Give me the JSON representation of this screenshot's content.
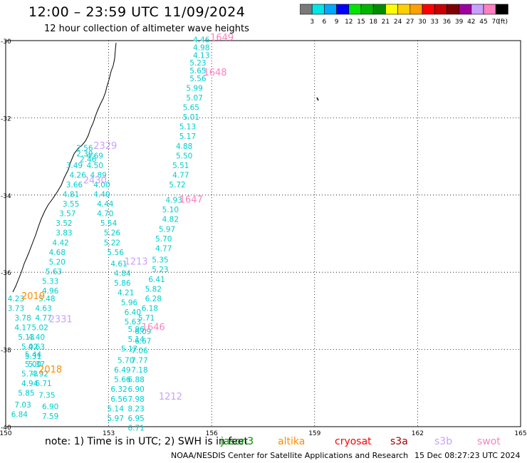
{
  "title": "12:00 – 23:59 UTC 11/09/2024",
  "subtitle": "12 hour collection of altimeter wave heights",
  "colorbar": {
    "unit": "(ft)",
    "colors": [
      "#7a7a7a",
      "#00e6e6",
      "#00a8ff",
      "#0000ff",
      "#00e600",
      "#00b400",
      "#008c00",
      "#ffff00",
      "#ffd000",
      "#ffa000",
      "#ff0000",
      "#c80000",
      "#800000",
      "#a000a0",
      "#c8a0ff",
      "#ff80c0",
      "#000000"
    ],
    "labels": [
      "3",
      "6",
      "9",
      "12",
      "15",
      "18",
      "21",
      "24",
      "27",
      "30",
      "33",
      "36",
      "39",
      "42",
      "45",
      "70"
    ]
  },
  "axes": {
    "lon_min": 150,
    "lon_max": 165,
    "lat_min": -40,
    "lat_max": -30,
    "lon_ticks": [
      "150",
      "153",
      "156",
      "159",
      "162",
      "165"
    ],
    "lat_ticks": [
      "-30",
      "-32",
      "-34",
      "-36",
      "-38",
      "-40"
    ]
  },
  "note": {
    "text": "note:  1) Time is in UTC;  2) SWH is in feet",
    "missions": [
      {
        "name": "jason3",
        "color": "#008800"
      },
      {
        "name": "altika",
        "color": "#ff8c00"
      },
      {
        "name": "cryosat",
        "color": "#ff0000"
      },
      {
        "name": "s3a",
        "color": "#a00000"
      },
      {
        "name": "s3b",
        "color": "#c8a0ff"
      },
      {
        "name": "swot",
        "color": "#ff80c0"
      }
    ]
  },
  "credit": "NOAA/NESDIS Center for Satellite Applications and Research",
  "credit_date": "15 Dec 08:27:23 UTC 2024",
  "chart_data": {
    "type": "scatter",
    "unit": "ft",
    "passes": [
      {
        "label": "1649",
        "color": "#ff80c0",
        "lon": 156.3,
        "lat": -30.0
      },
      {
        "label": "1648",
        "color": "#ff80c0",
        "lon": 156.1,
        "lat": -30.9
      },
      {
        "label": "1647",
        "color": "#ff80c0",
        "lon": 155.4,
        "lat": -34.2
      },
      {
        "label": "1646",
        "color": "#ff80c0",
        "lon": 154.3,
        "lat": -37.5
      },
      {
        "label": "2329",
        "color": "#c8a0ff",
        "lon": 152.9,
        "lat": -32.8
      },
      {
        "label": "2430",
        "color": "#c8a0ff",
        "lon": 152.6,
        "lat": -33.7
      },
      {
        "label": "2331",
        "color": "#c8a0ff",
        "lon": 151.6,
        "lat": -37.3
      },
      {
        "label": "1212",
        "color": "#c8a0ff",
        "lon": 154.8,
        "lat": -39.3
      },
      {
        "label": "1213",
        "color": "#c8a0ff",
        "lon": 153.8,
        "lat": -35.8
      },
      {
        "label": "2019",
        "color": "#ff8c00",
        "lon": 150.8,
        "lat": -36.7
      },
      {
        "label": "2018",
        "color": "#ff8c00",
        "lon": 151.3,
        "lat": -38.6
      }
    ],
    "tracks": [
      {
        "color": "#00cdcd",
        "points": [
          [
            155.7,
            -30.05,
            "4.46"
          ],
          [
            155.7,
            -30.25,
            "4.98"
          ],
          [
            155.7,
            -30.45,
            "4.13"
          ],
          [
            155.6,
            -30.65,
            "5.23"
          ],
          [
            155.6,
            -30.85,
            "5.65"
          ],
          [
            155.6,
            -31.05,
            "5.56"
          ],
          [
            155.5,
            -31.3,
            "5.99"
          ],
          [
            155.5,
            -31.55,
            "5.07"
          ],
          [
            155.4,
            -31.8,
            "5.65"
          ],
          [
            155.4,
            -32.05,
            "5.01"
          ],
          [
            155.3,
            -32.3,
            "5.13"
          ],
          [
            155.3,
            -32.55,
            "5.17"
          ],
          [
            155.2,
            -32.8,
            "4.88"
          ],
          [
            155.2,
            -33.05,
            "5.50"
          ],
          [
            155.1,
            -33.3,
            "5.51"
          ],
          [
            155.1,
            -33.55,
            "4.77"
          ],
          [
            155.0,
            -33.8,
            "5.72"
          ],
          [
            154.9,
            -34.2,
            "4.93"
          ],
          [
            154.8,
            -34.45,
            "5.10"
          ],
          [
            154.8,
            -34.7,
            "4.82"
          ],
          [
            154.7,
            -34.95,
            "5.97"
          ],
          [
            154.6,
            -35.2,
            "5.70"
          ],
          [
            154.6,
            -35.45,
            "4.77"
          ],
          [
            154.5,
            -35.75,
            "5.35"
          ],
          [
            154.5,
            -36.0,
            "5.23"
          ],
          [
            154.4,
            -36.25,
            "6.41"
          ],
          [
            154.3,
            -36.5,
            "5.82"
          ],
          [
            154.3,
            -36.75,
            "6.28"
          ],
          [
            154.2,
            -37.0,
            "6.18"
          ],
          [
            154.1,
            -37.25,
            "5.71"
          ],
          [
            154.0,
            -37.6,
            "6.09"
          ],
          [
            154.0,
            -37.85,
            "6.67"
          ],
          [
            153.9,
            -38.1,
            "7.06"
          ],
          [
            153.9,
            -38.35,
            "7.77"
          ],
          [
            153.9,
            -38.6,
            "7.18"
          ],
          [
            153.8,
            -38.85,
            "6.88"
          ],
          [
            153.8,
            -39.1,
            "6.90"
          ],
          [
            153.8,
            -39.35,
            "7.98"
          ],
          [
            153.8,
            -39.6,
            "8.23"
          ],
          [
            153.8,
            -39.85,
            "6.95"
          ],
          [
            153.8,
            -40.1,
            "6.71"
          ]
        ]
      },
      {
        "color": "#00cdcd",
        "points": [
          [
            152.3,
            -32.85,
            "2.56"
          ],
          [
            152.3,
            -33.0,
            "2.39"
          ],
          [
            152.4,
            -33.15,
            "2.46"
          ],
          [
            152.0,
            -33.3,
            "3.49"
          ],
          [
            152.1,
            -33.55,
            "4.26"
          ],
          [
            152.0,
            -33.8,
            "3.66"
          ],
          [
            151.9,
            -34.05,
            "4.81"
          ],
          [
            151.9,
            -34.3,
            "3.55"
          ],
          [
            151.8,
            -34.55,
            "3.57"
          ],
          [
            151.7,
            -34.8,
            "3.52"
          ],
          [
            151.7,
            -35.05,
            "3.83"
          ],
          [
            151.6,
            -35.3,
            "4.42"
          ],
          [
            151.5,
            -35.55,
            "4.68"
          ],
          [
            151.5,
            -35.8,
            "5.20"
          ],
          [
            151.4,
            -36.05,
            "5.63"
          ],
          [
            151.3,
            -36.3,
            "5.33"
          ],
          [
            151.3,
            -36.55,
            "4.96"
          ],
          [
            151.2,
            -36.75,
            "5.48"
          ],
          [
            151.1,
            -37.0,
            "4.63"
          ],
          [
            151.1,
            -37.25,
            "4.77"
          ],
          [
            151.0,
            -37.5,
            "5.02"
          ],
          [
            150.9,
            -37.75,
            "4.40"
          ],
          [
            150.9,
            -38.0,
            "4.63"
          ],
          [
            150.8,
            -38.2,
            "5.44"
          ],
          [
            150.8,
            -38.45,
            "5.00"
          ],
          [
            150.7,
            -38.7,
            "5.73"
          ],
          [
            150.7,
            -38.95,
            "4.94"
          ],
          [
            150.6,
            -39.2,
            "5.85"
          ],
          [
            150.5,
            -39.5,
            "7.03"
          ],
          [
            150.4,
            -39.75,
            "6.84"
          ]
        ]
      },
      {
        "color": "#00cdcd",
        "points": [
          [
            152.6,
            -33.05,
            "4.69"
          ],
          [
            152.6,
            -33.3,
            "4.50"
          ],
          [
            152.7,
            -33.55,
            "4.89"
          ],
          [
            152.8,
            -33.8,
            "4.00"
          ],
          [
            152.8,
            -34.05,
            "4.40"
          ],
          [
            152.9,
            -34.3,
            "4.44"
          ],
          [
            152.9,
            -34.55,
            "4.70"
          ],
          [
            153.0,
            -34.8,
            "5.54"
          ],
          [
            153.1,
            -35.05,
            "5.26"
          ],
          [
            153.1,
            -35.3,
            "5.22"
          ],
          [
            153.2,
            -35.55,
            "5.56"
          ],
          [
            153.3,
            -35.85,
            "4.61"
          ],
          [
            153.4,
            -36.1,
            "4.84"
          ],
          [
            153.4,
            -36.35,
            "5.86"
          ],
          [
            153.5,
            -36.6,
            "4.21"
          ],
          [
            153.6,
            -36.85,
            "5.96"
          ],
          [
            153.7,
            -37.1,
            "6.40"
          ],
          [
            153.7,
            -37.35,
            "5.63"
          ],
          [
            153.8,
            -37.55,
            "5.96"
          ],
          [
            153.8,
            -37.8,
            "5.14"
          ],
          [
            153.6,
            -38.05,
            "5.17"
          ],
          [
            153.5,
            -38.35,
            "5.70"
          ],
          [
            153.4,
            -38.6,
            "6.49"
          ],
          [
            153.4,
            -38.85,
            "5.66"
          ],
          [
            153.3,
            -39.1,
            "6.32"
          ],
          [
            153.3,
            -39.35,
            "6.56"
          ],
          [
            153.2,
            -39.6,
            "5.14"
          ],
          [
            153.2,
            -39.85,
            "5.97"
          ]
        ]
      },
      {
        "color": "#00cdcd",
        "points": [
          [
            150.3,
            -36.75,
            "4.23"
          ],
          [
            150.3,
            -37.0,
            "3.73"
          ],
          [
            150.5,
            -37.25,
            "3.78"
          ],
          [
            150.5,
            -37.5,
            "4.17"
          ],
          [
            150.6,
            -37.75,
            "5.13"
          ],
          [
            150.7,
            -38.0,
            "5.02"
          ],
          [
            150.8,
            -38.25,
            "5.31"
          ],
          [
            150.9,
            -38.45,
            "5.37"
          ],
          [
            151.0,
            -38.7,
            "4.92"
          ],
          [
            151.1,
            -38.95,
            "6.71"
          ],
          [
            151.2,
            -39.25,
            "7.35"
          ],
          [
            151.3,
            -39.55,
            "6.90"
          ],
          [
            151.3,
            -39.8,
            "7.59"
          ]
        ]
      }
    ]
  }
}
